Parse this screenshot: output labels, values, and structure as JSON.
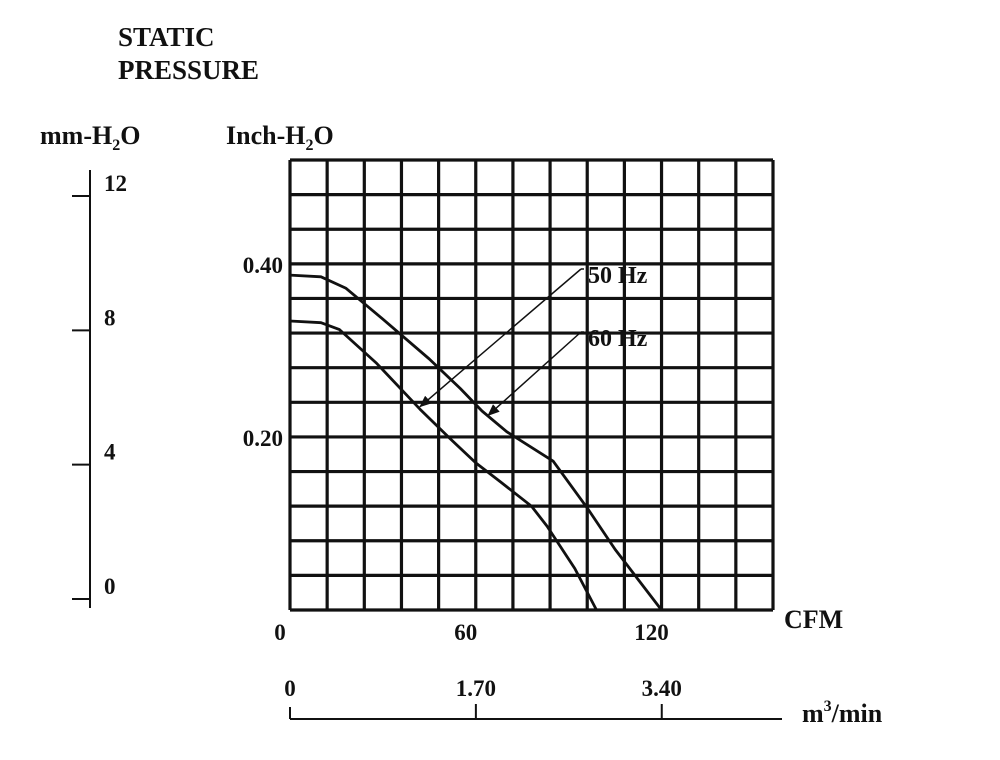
{
  "chart_data": {
    "type": "line",
    "title_lines": [
      "STATIC",
      "PRESSURE"
    ],
    "left_axis": {
      "label_main": "mm-H",
      "label_sub": "2",
      "label_tail": "O",
      "ticks": [
        {
          "value": 12,
          "label": "12"
        },
        {
          "value": 8,
          "label": "8"
        },
        {
          "value": 4,
          "label": "4"
        },
        {
          "value": 0,
          "label": "0"
        }
      ]
    },
    "y_axis": {
      "label_main": "Inch-H",
      "label_sub": "2",
      "label_tail": "O",
      "range": [
        0,
        0.52
      ],
      "ticks": [
        {
          "value": 0.4,
          "label": "0.40"
        },
        {
          "value": 0.2,
          "label": "0.20"
        }
      ]
    },
    "x_axis": {
      "label": "CFM",
      "range": [
        0,
        156
      ],
      "ticks": [
        {
          "value": 0,
          "label": "0"
        },
        {
          "value": 60,
          "label": "60"
        },
        {
          "value": 120,
          "label": "120"
        }
      ]
    },
    "secondary_x_axis": {
      "label_main": "m",
      "label_sup": "3",
      "label_tail": "/min",
      "ticks": [
        {
          "value": 0,
          "label": "0"
        },
        {
          "value": 1.7,
          "label": "1.70"
        },
        {
          "value": 3.4,
          "label": "3.40"
        }
      ]
    },
    "grid": {
      "on": true,
      "columns": 13,
      "rows": 13
    },
    "series": [
      {
        "name": "50 Hz",
        "x": [
          0,
          10,
          18,
          30,
          45,
          55,
          62,
          70,
          85,
          96,
          105,
          120
        ],
        "y": [
          0.387,
          0.385,
          0.372,
          0.336,
          0.29,
          0.256,
          0.23,
          0.206,
          0.172,
          0.118,
          0.07,
          0.0
        ]
      },
      {
        "name": "60 Hz",
        "x": [
          0,
          10,
          16,
          28,
          42,
          52,
          60,
          68,
          78,
          83,
          92,
          99
        ],
        "y": [
          0.334,
          0.332,
          0.324,
          0.285,
          0.232,
          0.197,
          0.17,
          0.148,
          0.12,
          0.097,
          0.048,
          0.0
        ]
      }
    ],
    "annotations": [
      {
        "text": "50 Hz",
        "target": {
          "x": 42,
          "y": 0.235
        }
      },
      {
        "text": "60 Hz",
        "target": {
          "x": 64,
          "y": 0.225
        }
      }
    ]
  }
}
